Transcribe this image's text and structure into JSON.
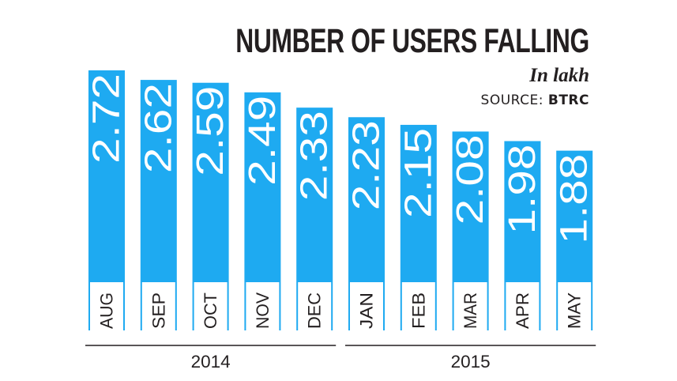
{
  "header": {
    "title": "NUMBER OF USERS FALLING",
    "unit": "In lakh",
    "source_label": "SOURCE:",
    "source_name": "BTRC"
  },
  "colors": {
    "bar": "#1eaaf1",
    "text": "#231f20",
    "value_text": "#ffffff"
  },
  "chart_data": {
    "type": "bar",
    "title": "NUMBER OF USERS FALLING",
    "ylabel": "In lakh",
    "xlabel": "",
    "ylim": [
      0,
      2.72
    ],
    "grid": false,
    "categories": [
      "AUG",
      "SEP",
      "OCT",
      "NOV",
      "DEC",
      "JAN",
      "FEB",
      "MAR",
      "APR",
      "MAY"
    ],
    "values": [
      2.72,
      2.62,
      2.59,
      2.49,
      2.33,
      2.23,
      2.15,
      2.08,
      1.98,
      1.88
    ],
    "value_labels": [
      "2.72",
      "2.62",
      "2.59",
      "2.49",
      "2.33",
      "2.23",
      "2.15",
      "2.08",
      "1.98",
      "1.88"
    ],
    "groups": [
      {
        "label": "2014",
        "start": 0,
        "end": 4
      },
      {
        "label": "2015",
        "start": 5,
        "end": 9
      }
    ],
    "annotations": [
      "SOURCE: BTRC"
    ]
  }
}
